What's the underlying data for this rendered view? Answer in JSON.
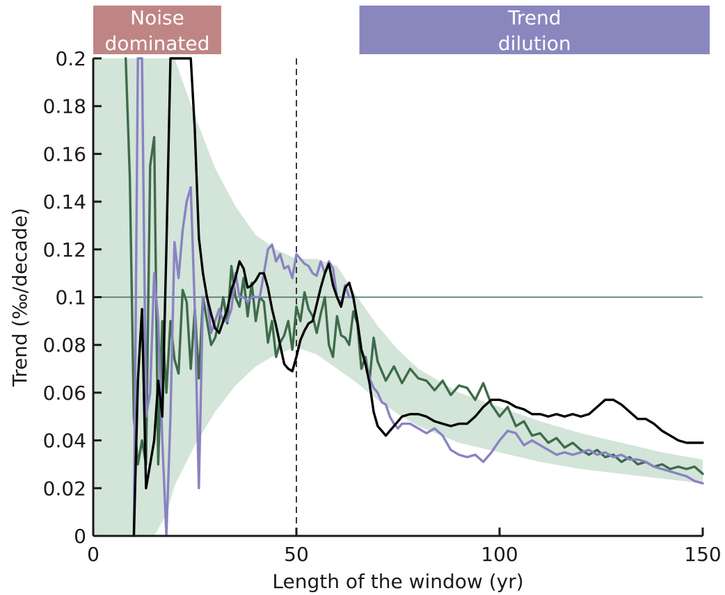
{
  "chart_data": {
    "type": "line",
    "xlabel": "Length of the window (yr)",
    "ylabel": "Trend (‰/decade)",
    "xlim": [
      0,
      150
    ],
    "ylim": [
      0,
      0.2
    ],
    "xticks": [
      "0",
      "50",
      "100",
      "150"
    ],
    "yticks": [
      "0",
      "0.02",
      "0.04",
      "0.06",
      "0.08",
      "0.1",
      "0.12",
      "0.14",
      "0.16",
      "0.18",
      "0.2"
    ],
    "grid": false,
    "regions": [
      {
        "label_lines": [
          "Noise",
          "dominated"
        ],
        "x_start": 0,
        "x_end": 31.5,
        "color": "#bf8585"
      },
      {
        "label_lines": [
          "Trend",
          "dilution"
        ],
        "x_start": 65.5,
        "x_end": 152,
        "color": "#8a87bf"
      }
    ],
    "reference_lines": [
      {
        "orientation": "horizontal",
        "value": 0.1,
        "style": "solid",
        "color": "#3d6b5e"
      },
      {
        "orientation": "vertical",
        "value": 50,
        "style": "dashed",
        "color": "#222222"
      }
    ],
    "envelope": {
      "color": "#d3e4d8",
      "x": [
        0,
        5,
        10,
        12,
        15,
        18,
        20,
        25,
        30,
        35,
        40,
        45,
        50,
        55,
        60,
        65,
        70,
        75,
        80,
        90,
        100,
        110,
        120,
        130,
        140,
        150
      ],
      "upper": [
        0.2,
        0.2,
        0.2,
        0.2,
        0.2,
        0.2,
        0.2,
        0.176,
        0.154,
        0.138,
        0.126,
        0.12,
        0.116,
        0.116,
        0.113,
        0.1,
        0.088,
        0.078,
        0.07,
        0.06,
        0.054,
        0.048,
        0.043,
        0.039,
        0.035,
        0.032
      ],
      "lower": [
        0,
        0,
        0,
        0,
        0,
        0.009,
        0.021,
        0.038,
        0.052,
        0.063,
        0.071,
        0.076,
        0.079,
        0.076,
        0.07,
        0.064,
        0.057,
        0.051,
        0.046,
        0.039,
        0.035,
        0.031,
        0.028,
        0.026,
        0.024,
        0.022
      ]
    },
    "series": [
      {
        "color": "#3d6b4a",
        "x": [
          8,
          9,
          10,
          11,
          12,
          13,
          14,
          15,
          16,
          17,
          18,
          19,
          20,
          21,
          22,
          23,
          24,
          25,
          26,
          27,
          28,
          29,
          30,
          31,
          32,
          33,
          34,
          35,
          36,
          37,
          38,
          39,
          40,
          41,
          42,
          43,
          44,
          45,
          46,
          47,
          48,
          49,
          50,
          51,
          52,
          53,
          54,
          55,
          56,
          57,
          58,
          59,
          60,
          61,
          62,
          63,
          64,
          65,
          66,
          67,
          68,
          69,
          70,
          72,
          74,
          76,
          78,
          80,
          82,
          84,
          86,
          88,
          90,
          92,
          94,
          96,
          98,
          100,
          102,
          104,
          106,
          108,
          110,
          112,
          114,
          116,
          118,
          120,
          122,
          124,
          126,
          128,
          130,
          132,
          134,
          136,
          138,
          140,
          142,
          144,
          146,
          148,
          150
        ],
        "values": [
          0.2,
          0.15,
          0.05,
          0.03,
          0.04,
          0.03,
          0.155,
          0.167,
          0.03,
          0.09,
          0.06,
          0.09,
          0.074,
          0.068,
          0.103,
          0.098,
          0.07,
          0.095,
          0.066,
          0.1,
          0.09,
          0.08,
          0.083,
          0.09,
          0.1,
          0.089,
          0.113,
          0.1,
          0.096,
          0.108,
          0.092,
          0.106,
          0.09,
          0.1,
          0.098,
          0.081,
          0.09,
          0.075,
          0.081,
          0.084,
          0.09,
          0.078,
          0.096,
          0.09,
          0.102,
          0.095,
          0.092,
          0.085,
          0.093,
          0.1,
          0.08,
          0.075,
          0.092,
          0.084,
          0.083,
          0.08,
          0.094,
          0.089,
          0.07,
          0.075,
          0.065,
          0.083,
          0.073,
          0.065,
          0.071,
          0.064,
          0.07,
          0.066,
          0.065,
          0.061,
          0.065,
          0.059,
          0.063,
          0.062,
          0.057,
          0.064,
          0.055,
          0.05,
          0.054,
          0.046,
          0.048,
          0.042,
          0.043,
          0.039,
          0.041,
          0.037,
          0.039,
          0.036,
          0.034,
          0.036,
          0.033,
          0.034,
          0.031,
          0.033,
          0.03,
          0.031,
          0.029,
          0.03,
          0.028,
          0.029,
          0.028,
          0.029,
          0.026
        ]
      },
      {
        "color": "#8a82c2",
        "x": [
          10,
          11,
          12,
          13,
          14,
          15,
          16,
          17,
          18,
          19,
          20,
          21,
          22,
          23,
          24,
          25,
          26,
          27,
          28,
          29,
          30,
          31,
          32,
          33,
          34,
          35,
          36,
          37,
          38,
          39,
          40,
          41,
          42,
          43,
          44,
          45,
          46,
          47,
          48,
          49,
          50,
          51,
          52,
          53,
          54,
          55,
          56,
          57,
          58,
          59,
          60,
          61,
          62,
          63,
          64,
          65,
          66,
          67,
          68,
          69,
          70,
          71,
          72,
          73,
          74,
          75,
          76,
          78,
          80,
          82,
          84,
          86,
          88,
          90,
          92,
          94,
          96,
          98,
          100,
          102,
          104,
          106,
          108,
          110,
          112,
          114,
          116,
          118,
          120,
          122,
          124,
          126,
          128,
          130,
          132,
          134,
          136,
          138,
          140,
          142,
          144,
          146,
          148,
          150
        ],
        "values": [
          0.0,
          0.2,
          0.2,
          0.05,
          0.06,
          0.11,
          0.09,
          0.04,
          0.0,
          0.05,
          0.123,
          0.108,
          0.128,
          0.14,
          0.146,
          0.095,
          0.02,
          0.1,
          0.1,
          0.085,
          0.09,
          0.095,
          0.09,
          0.09,
          0.095,
          0.11,
          0.1,
          0.1,
          0.098,
          0.1,
          0.1,
          0.1,
          0.11,
          0.12,
          0.122,
          0.115,
          0.118,
          0.112,
          0.113,
          0.108,
          0.118,
          0.116,
          0.114,
          0.113,
          0.11,
          0.109,
          0.115,
          0.11,
          0.115,
          0.112,
          0.1,
          0.097,
          0.105,
          0.1,
          0.1,
          0.09,
          0.078,
          0.073,
          0.066,
          0.062,
          0.06,
          0.056,
          0.055,
          0.05,
          0.047,
          0.045,
          0.047,
          0.047,
          0.045,
          0.043,
          0.045,
          0.042,
          0.036,
          0.034,
          0.033,
          0.034,
          0.031,
          0.035,
          0.04,
          0.044,
          0.043,
          0.038,
          0.04,
          0.038,
          0.036,
          0.034,
          0.035,
          0.034,
          0.035,
          0.036,
          0.034,
          0.035,
          0.033,
          0.034,
          0.032,
          0.032,
          0.031,
          0.029,
          0.028,
          0.027,
          0.026,
          0.025,
          0.023,
          0.022
        ]
      },
      {
        "color": "#000000",
        "x": [
          10,
          11,
          12,
          13,
          14,
          15,
          16,
          17,
          18,
          19,
          20,
          21,
          22,
          23,
          24,
          25,
          26,
          27,
          28,
          29,
          30,
          31,
          32,
          33,
          34,
          35,
          36,
          37,
          38,
          39,
          40,
          41,
          42,
          43,
          44,
          45,
          46,
          47,
          48,
          49,
          50,
          51,
          52,
          53,
          54,
          55,
          56,
          57,
          58,
          59,
          60,
          61,
          62,
          63,
          64,
          65,
          66,
          67,
          68,
          69,
          70,
          72,
          74,
          76,
          78,
          80,
          82,
          84,
          86,
          88,
          90,
          92,
          94,
          96,
          98,
          100,
          102,
          104,
          106,
          108,
          110,
          112,
          114,
          116,
          118,
          120,
          122,
          124,
          126,
          128,
          130,
          132,
          134,
          136,
          138,
          140,
          142,
          144,
          146,
          148,
          150
        ],
        "values": [
          0.0,
          0.065,
          0.095,
          0.02,
          0.03,
          0.04,
          0.065,
          0.05,
          0.12,
          0.2,
          0.2,
          0.2,
          0.2,
          0.2,
          0.2,
          0.17,
          0.125,
          0.11,
          0.1,
          0.093,
          0.087,
          0.085,
          0.09,
          0.095,
          0.103,
          0.108,
          0.115,
          0.112,
          0.104,
          0.105,
          0.107,
          0.11,
          0.11,
          0.104,
          0.095,
          0.088,
          0.08,
          0.072,
          0.07,
          0.069,
          0.075,
          0.082,
          0.086,
          0.089,
          0.09,
          0.097,
          0.104,
          0.11,
          0.114,
          0.105,
          0.1,
          0.096,
          0.104,
          0.106,
          0.1,
          0.09,
          0.078,
          0.072,
          0.064,
          0.052,
          0.046,
          0.042,
          0.046,
          0.05,
          0.051,
          0.051,
          0.05,
          0.048,
          0.047,
          0.046,
          0.047,
          0.047,
          0.05,
          0.054,
          0.057,
          0.057,
          0.056,
          0.054,
          0.053,
          0.051,
          0.051,
          0.05,
          0.051,
          0.05,
          0.051,
          0.05,
          0.051,
          0.054,
          0.057,
          0.057,
          0.055,
          0.052,
          0.049,
          0.049,
          0.047,
          0.044,
          0.042,
          0.04,
          0.039,
          0.039,
          0.039
        ]
      }
    ]
  }
}
